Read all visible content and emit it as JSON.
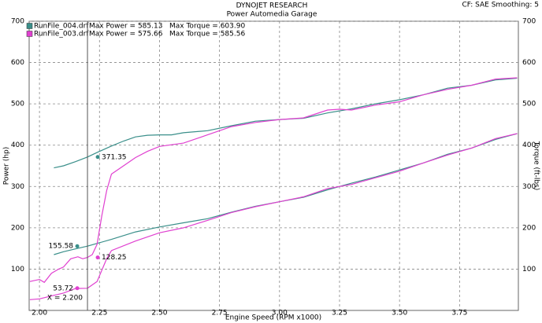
{
  "chart_data": {
    "type": "line",
    "title": "DYNOJET RESEARCH",
    "subtitle": "Power Automedia Garage",
    "settings_text": "CF: SAE  Smoothing: 5",
    "x_label": "Engine Speed (RPM x1000)",
    "y_label": "Power (hp)",
    "y2_label": "Torque (ft-lbs)",
    "xlim": [
      1.957,
      3.995
    ],
    "xticks": [
      {
        "value": 2,
        "label": "2.00"
      },
      {
        "value": 2.25,
        "label": "2.25"
      },
      {
        "value": 2.5,
        "label": "2.50"
      },
      {
        "value": 2.75,
        "label": "2.75"
      },
      {
        "value": 3,
        "label": "3.00"
      },
      {
        "value": 3.25,
        "label": "3.25"
      },
      {
        "value": 3.5,
        "label": "3.50"
      },
      {
        "value": 3.75,
        "label": "3.75"
      }
    ],
    "ylim": [
      0,
      700
    ],
    "yticks": [
      100,
      200,
      300,
      400,
      500,
      600,
      700
    ],
    "y2lim": [
      0,
      700
    ],
    "y2ticks": [
      100,
      200,
      300,
      400,
      500,
      600,
      700
    ],
    "grid": true,
    "series": [
      {
        "name": "RunFile_004.drf",
        "max_power": "Max Power = 585.13",
        "max_torque": "Max Torque = 603.90",
        "color": "#3a8f8a",
        "x": [
          2.06,
          2.1,
          2.15,
          2.2,
          2.3,
          2.4,
          2.5,
          2.6,
          2.7,
          2.8,
          2.9,
          3.0,
          3.1,
          3.2,
          3.3,
          3.4,
          3.5,
          3.6,
          3.7,
          3.8,
          3.9,
          3.99
        ],
        "values": [
          135,
          142,
          149,
          155.58,
          172,
          190,
          202,
          212,
          222,
          238,
          252,
          263,
          274,
          292,
          308,
          323,
          340,
          357,
          378,
          393,
          414,
          428
        ],
        "torque_x": [
          2.06,
          2.1,
          2.15,
          2.2,
          2.25,
          2.3,
          2.35,
          2.4,
          2.45,
          2.5,
          2.55,
          2.6,
          2.7,
          2.8,
          2.9,
          3.0,
          3.1,
          3.2,
          3.3,
          3.4,
          3.5,
          3.6,
          3.7,
          3.8,
          3.9,
          3.99
        ],
        "torque": [
          345,
          350,
          360,
          371.35,
          385,
          398,
          410,
          420,
          424,
          425,
          425,
          430,
          435,
          447,
          458,
          462,
          465,
          478,
          488,
          500,
          510,
          522,
          538,
          545,
          558,
          562
        ]
      },
      {
        "name": "RunFile_003.drf",
        "max_power": "Max Power = 575.66",
        "max_torque": "Max Torque = 585.56",
        "color": "#e040d0",
        "x": [
          1.96,
          2.0,
          2.05,
          2.1,
          2.15,
          2.2,
          2.24,
          2.28,
          2.3,
          2.4,
          2.5,
          2.6,
          2.7,
          2.8,
          2.9,
          3.0,
          3.1,
          3.2,
          3.3,
          3.4,
          3.5,
          3.6,
          3.7,
          3.8,
          3.9,
          3.99
        ],
        "values": [
          26,
          28,
          35,
          42,
          53,
          53.72,
          70,
          125,
          145,
          168,
          188,
          200,
          218,
          237,
          251,
          263,
          275,
          295,
          305,
          321,
          337,
          357,
          376,
          393,
          416,
          428
        ],
        "torque_x": [
          1.96,
          2.0,
          2.02,
          2.05,
          2.08,
          2.1,
          2.13,
          2.16,
          2.18,
          2.2,
          2.22,
          2.24,
          2.26,
          2.28,
          2.3,
          2.35,
          2.4,
          2.45,
          2.5,
          2.6,
          2.7,
          2.8,
          2.9,
          3.0,
          3.1,
          3.2,
          3.25,
          3.3,
          3.4,
          3.5,
          3.6,
          3.7,
          3.8,
          3.9,
          3.99
        ],
        "torque": [
          70,
          75,
          68,
          90,
          100,
          105,
          125,
          130,
          125,
          128.25,
          135,
          160,
          230,
          290,
          330,
          350,
          370,
          385,
          397,
          405,
          425,
          445,
          455,
          462,
          466,
          485,
          487,
          485,
          497,
          505,
          522,
          535,
          545,
          560,
          563
        ]
      }
    ],
    "cursor": {
      "x": {
        "value": 2.2,
        "label": "X = 2.200"
      },
      "readouts": [
        {
          "series": 0,
          "axis": "y2",
          "value": 371.35
        },
        {
          "series": 0,
          "axis": "y",
          "value": 155.58
        },
        {
          "series": 1,
          "axis": "y2",
          "value": 128.25
        },
        {
          "series": 1,
          "axis": "y",
          "value": 53.72
        }
      ]
    }
  }
}
